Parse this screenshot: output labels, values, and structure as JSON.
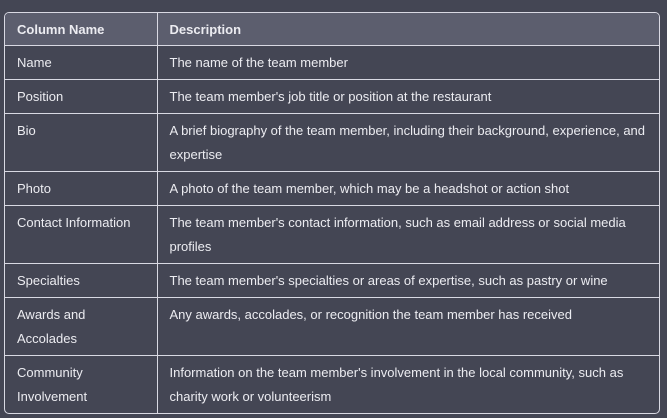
{
  "table": {
    "headers": [
      "Column Name",
      "Description"
    ],
    "rows": [
      [
        "Name",
        "The name of the team member"
      ],
      [
        "Position",
        "The team member's job title or position at the restaurant"
      ],
      [
        "Bio",
        "A brief biography of the team member, including their background, experience, and expertise"
      ],
      [
        "Photo",
        "A photo of the team member, which may be a headshot or action shot"
      ],
      [
        "Contact Information",
        "The team member's contact information, such as email address or social media profiles"
      ],
      [
        "Specialties",
        "The team member's specialties or areas of expertise, such as pastry or wine"
      ],
      [
        "Awards and Accolades",
        "Any awards, accolades, or recognition the team member has received"
      ],
      [
        "Community Involvement",
        "Information on the team member's involvement in the local community, such as charity work or volunteerism"
      ]
    ]
  }
}
